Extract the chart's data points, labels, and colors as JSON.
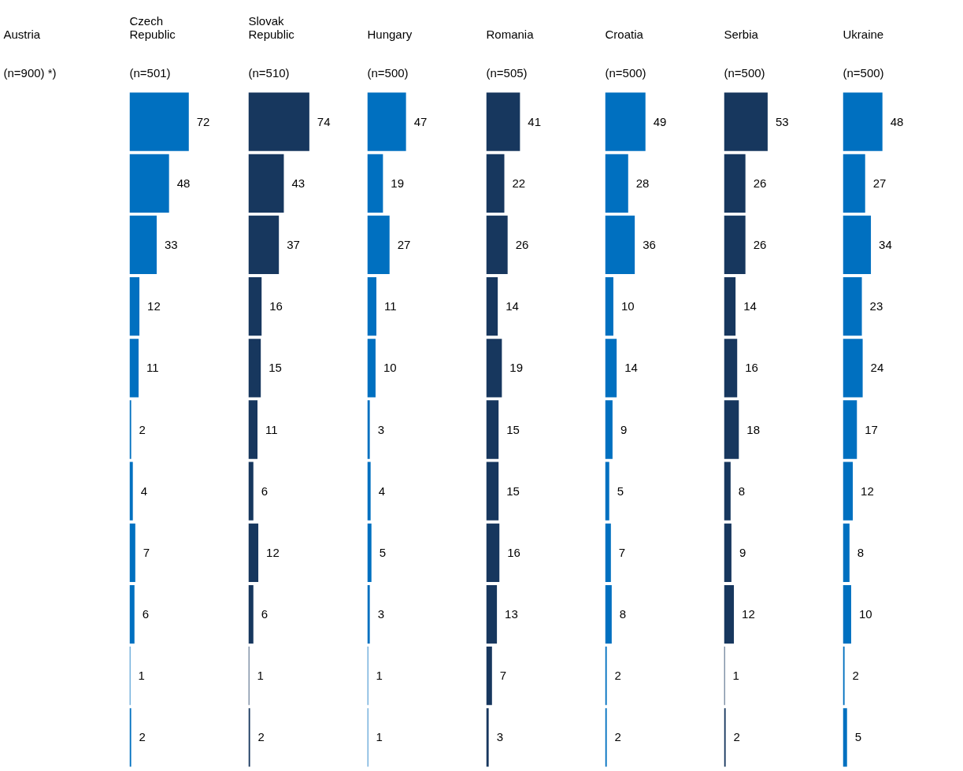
{
  "chart_data": [
    {
      "type": "other",
      "title": "Austria",
      "subtitle": "(n=900) *)"
    },
    {
      "type": "bar",
      "orientation": "horizontal",
      "title": "Czech\nRepublic",
      "subtitle": "(n=501)",
      "categories": [
        null,
        null,
        null,
        null,
        null,
        null,
        null,
        null,
        null,
        null,
        null
      ],
      "values": [
        72,
        48,
        33,
        12,
        11,
        2,
        4,
        7,
        6,
        1,
        2
      ],
      "color": "#0070c0",
      "tick_labels": false,
      "data_labels": true
    },
    {
      "type": "bar",
      "orientation": "horizontal",
      "title": "Slovak\nRepublic",
      "subtitle": "(n=510)",
      "categories": [
        null,
        null,
        null,
        null,
        null,
        null,
        null,
        null,
        null,
        null,
        null
      ],
      "values": [
        74,
        43,
        37,
        16,
        15,
        11,
        6,
        12,
        6,
        1,
        2
      ],
      "color": "#17375e",
      "tick_labels": false,
      "data_labels": true
    },
    {
      "type": "bar",
      "orientation": "horizontal",
      "title": "Hungary",
      "subtitle": "(n=500)",
      "categories": [
        null,
        null,
        null,
        null,
        null,
        null,
        null,
        null,
        null,
        null,
        null
      ],
      "values": [
        47,
        19,
        27,
        11,
        10,
        3,
        4,
        5,
        3,
        1,
        1
      ],
      "color": "#0070c0",
      "tick_labels": false,
      "data_labels": true
    },
    {
      "type": "bar",
      "orientation": "horizontal",
      "title": "Romania",
      "subtitle": "(n=505)",
      "categories": [
        null,
        null,
        null,
        null,
        null,
        null,
        null,
        null,
        null,
        null,
        null
      ],
      "values": [
        41,
        22,
        26,
        14,
        19,
        15,
        15,
        16,
        13,
        7,
        3
      ],
      "color": "#17375e",
      "tick_labels": false,
      "data_labels": true
    },
    {
      "type": "bar",
      "orientation": "horizontal",
      "title": "Croatia",
      "subtitle": "(n=500)",
      "categories": [
        null,
        null,
        null,
        null,
        null,
        null,
        null,
        null,
        null,
        null,
        null
      ],
      "values": [
        49,
        28,
        36,
        10,
        14,
        9,
        5,
        7,
        8,
        2,
        2
      ],
      "color": "#0070c0",
      "tick_labels": false,
      "data_labels": true
    },
    {
      "type": "bar",
      "orientation": "horizontal",
      "title": "Serbia",
      "subtitle": "(n=500)",
      "categories": [
        null,
        null,
        null,
        null,
        null,
        null,
        null,
        null,
        null,
        null,
        null
      ],
      "values": [
        53,
        26,
        26,
        14,
        16,
        18,
        8,
        9,
        12,
        1,
        2
      ],
      "color": "#17375e",
      "tick_labels": false,
      "data_labels": true
    },
    {
      "type": "bar",
      "orientation": "horizontal",
      "title": "Ukraine",
      "subtitle": "(n=500)",
      "categories": [
        null,
        null,
        null,
        null,
        null,
        null,
        null,
        null,
        null,
        null,
        null
      ],
      "values": [
        48,
        27,
        34,
        23,
        24,
        17,
        12,
        8,
        10,
        2,
        5
      ],
      "color": "#0070c0",
      "tick_labels": false,
      "data_labels": true
    }
  ]
}
